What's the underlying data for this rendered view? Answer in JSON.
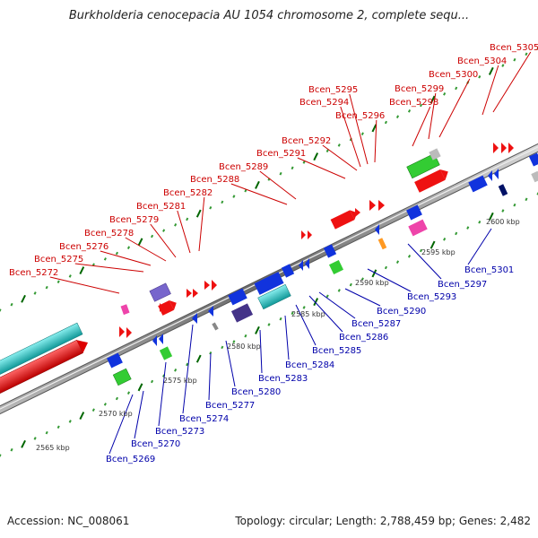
{
  "title": "Burkholderia cenocepacia AU 1054 chromosome 2, complete sequ...",
  "footer": {
    "accession": "Accession: NC_008061",
    "summary": "Topology: circular; Length: 2,788,459 bp; Genes: 2,482"
  },
  "colors": {
    "top_strand_label": "#cc0000",
    "bottom_strand_label": "#0000aa",
    "backbone": "#888888",
    "tick_minor": "#339933",
    "tick_major": "#006600"
  },
  "scale_labels": [
    "2565 kbp",
    "2570 kbp",
    "2575 kbp",
    "2580 kbp",
    "2585 kbp",
    "2590 kbp",
    "2595 kbp",
    "2600 kbp"
  ],
  "top_labels": [
    "Bcen_5272",
    "Bcen_5275",
    "Bcen_5276",
    "Bcen_5278",
    "Bcen_5279",
    "Bcen_5281",
    "Bcen_5282",
    "Bcen_5288",
    "Bcen_5289",
    "Bcen_5291",
    "Bcen_5292",
    "Bcen_5294",
    "Bcen_5295",
    "Bcen_5296",
    "Bcen_5298",
    "Bcen_5299",
    "Bcen_5300",
    "Bcen_5304",
    "Bcen_5305"
  ],
  "bottom_labels": [
    "Bcen_5269",
    "Bcen_5270",
    "Bcen_5273",
    "Bcen_5274",
    "Bcen_5277",
    "Bcen_5280",
    "Bcen_5283",
    "Bcen_5284",
    "Bcen_5285",
    "Bcen_5286",
    "Bcen_5287",
    "Bcen_5290",
    "Bcen_5293",
    "Bcen_5297",
    "Bcen_5301"
  ],
  "feature_colors": {
    "cyan": "#22cccc",
    "red": "#ee1111",
    "blue": "#1133dd",
    "green": "#33cc33",
    "purple": "#7766cc",
    "dark_purple": "#443388",
    "magenta": "#ee44aa",
    "orange": "#ff9922",
    "gray": "#aaaaaa",
    "navy": "#001166"
  }
}
